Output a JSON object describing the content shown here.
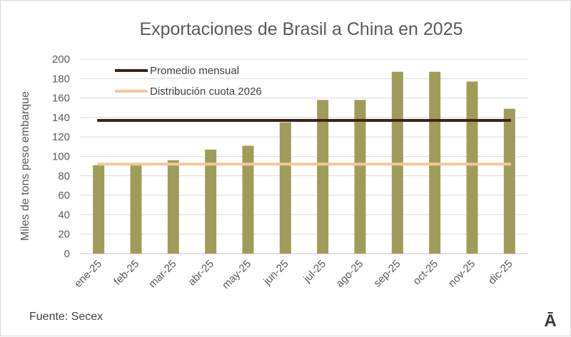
{
  "chart_data": {
    "type": "bar",
    "title": "Exportaciones de Brasil a China en 2025",
    "ylabel": "Miles de tons peso embarque",
    "xlabel": "",
    "ylim": [
      0,
      200
    ],
    "yticks": [
      0,
      20,
      40,
      60,
      80,
      100,
      120,
      140,
      160,
      180,
      200
    ],
    "grid": true,
    "categories": [
      "ene-25",
      "feb-25",
      "mar-25",
      "abr-25",
      "may-25",
      "jun-25",
      "jul-25",
      "ago-25",
      "sep-25",
      "oct-25",
      "nov-25",
      "dic-25"
    ],
    "values": [
      91,
      91,
      96,
      107,
      111,
      135,
      158,
      158,
      187,
      187,
      177,
      149
    ],
    "bar_color": "#a19b5a",
    "reference_lines": [
      {
        "name": "Promedio mensual",
        "value": 137,
        "color": "#3d2314"
      },
      {
        "name": "Distribución cuota 2026",
        "value": 92,
        "color": "#f4c79c"
      }
    ],
    "legend_position": "top-left"
  },
  "footer": {
    "source": "Fuente: Secex",
    "logo": "Ā"
  }
}
